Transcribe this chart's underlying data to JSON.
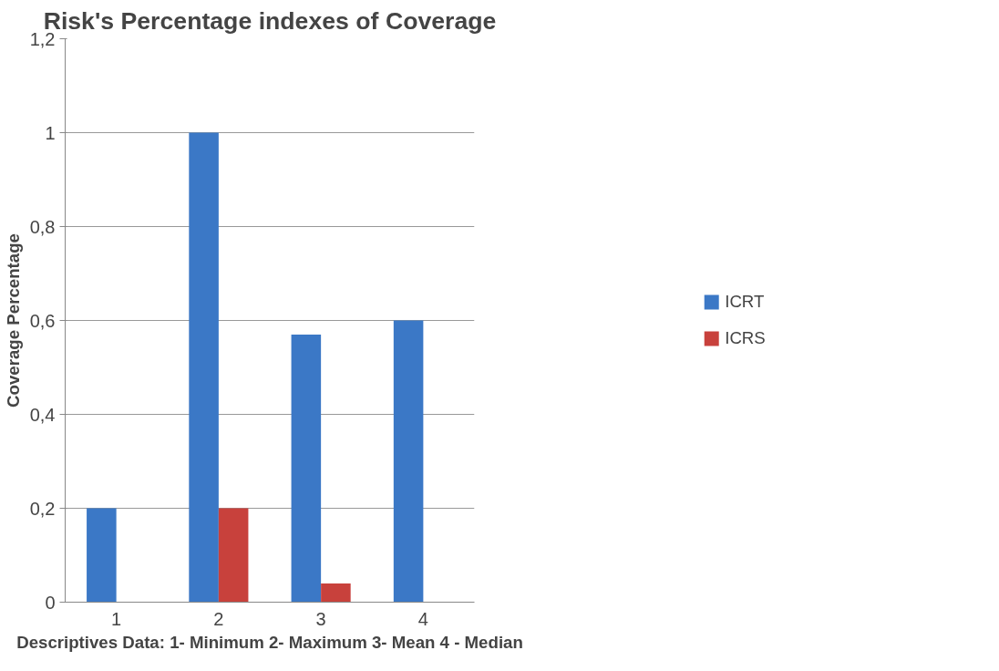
{
  "chart_data": {
    "type": "bar",
    "title": "Risk's Percentage indexes of Coverage",
    "xlabel": "Descriptives Data: 1- Minimum 2- Maximum 3- Mean 4 - Median",
    "ylabel": "Coverage Percentage",
    "categories": [
      "1",
      "2",
      "3",
      "4"
    ],
    "series": [
      {
        "name": "ICRT",
        "color": "#3b78c6",
        "values": [
          0.2,
          1,
          0.57,
          0.6
        ]
      },
      {
        "name": "ICRS",
        "color": "#c8413c",
        "values": [
          0,
          0.2,
          0.04,
          0
        ]
      }
    ],
    "ylim": [
      0,
      1.2
    ],
    "yticks": [
      0,
      {
        "value": 0.2,
        "label": "0,2"
      },
      {
        "value": 0.4,
        "label": "0,4"
      },
      {
        "value": 0.6,
        "label": "0,6"
      },
      {
        "value": 0.8,
        "label": "0,8"
      },
      1,
      {
        "value": 1.2,
        "label": "1,2"
      }
    ],
    "grid": "y",
    "legend": "right"
  }
}
